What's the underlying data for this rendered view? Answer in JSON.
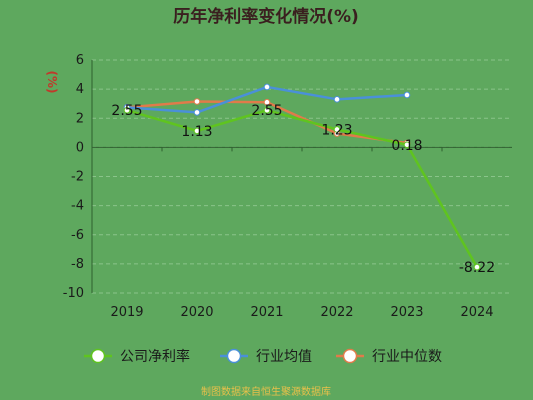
{
  "chart_data": {
    "type": "line",
    "title": "历年净利率变化情况(%)",
    "ylabel": "(%)",
    "x": [
      "2019",
      "2020",
      "2021",
      "2022",
      "2023",
      "2024"
    ],
    "ylim": [
      -10,
      6
    ],
    "yticks": [
      6,
      4,
      2,
      0,
      -2,
      -4,
      -6,
      -8,
      -10
    ],
    "grid": true,
    "legend_position": "bottom",
    "series": [
      {
        "name": "公司净利率",
        "color": "#5fc41f",
        "values": [
          2.55,
          1.13,
          2.55,
          1.23,
          0.18,
          -8.22
        ],
        "labels": [
          "2.55",
          "1.13",
          "2.55",
          "1.23",
          "0.18",
          "-8.22"
        ]
      },
      {
        "name": "行业均值",
        "color": "#4a90d9",
        "values": [
          2.75,
          2.4,
          4.15,
          3.3,
          3.6,
          null
        ]
      },
      {
        "name": "行业中位数",
        "color": "#e07b4a",
        "values": [
          2.75,
          3.15,
          3.1,
          0.95,
          0.3,
          null
        ]
      }
    ],
    "source": "制图数据来自恒生聚源数据库"
  }
}
